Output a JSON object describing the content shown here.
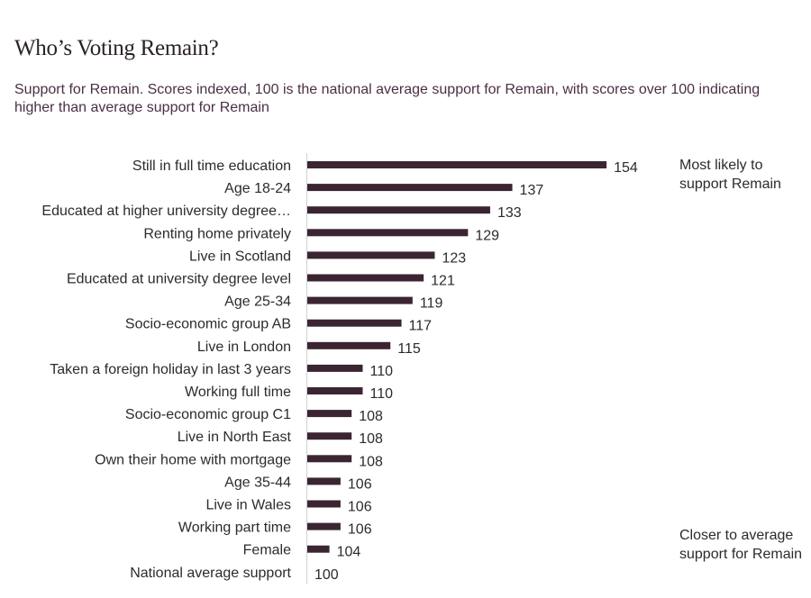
{
  "title": "Who’s Voting Remain?",
  "subtitle": "Support for Remain. Scores indexed, 100 is the national average support for Remain, with scores over 100 indicating higher than average support for Remain",
  "annotations": {
    "top": "Most likely to support Remain",
    "bottom": "Closer to average support for Remain"
  },
  "colors": {
    "bar": "#3b2533",
    "axis": "#d0d0d0"
  },
  "chart_data": {
    "type": "bar",
    "orientation": "horizontal",
    "baseline": 100,
    "categories": [
      "Still in full time education",
      "Age 18-24",
      "Educated at higher university degree…",
      "Renting home privately",
      "Live in Scotland",
      "Educated at  university degree level",
      "Age  25-34",
      "Socio-economic group  AB",
      "Live in London",
      "Taken a foreign holiday in last 3 years",
      "Working full time",
      "Socio-economic group C1",
      "Live in North East",
      "Own their home with mortgage",
      "Age 35-44",
      "Live in Wales",
      "Working part time",
      "Female",
      "National average support"
    ],
    "values": [
      154,
      137,
      133,
      129,
      123,
      121,
      119,
      117,
      115,
      110,
      110,
      108,
      108,
      108,
      106,
      106,
      106,
      104,
      100
    ]
  }
}
